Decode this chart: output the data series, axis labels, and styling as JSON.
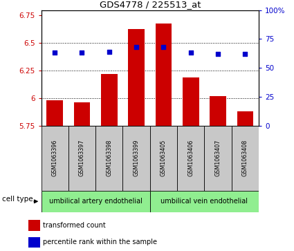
{
  "title": "GDS4778 / 225513_at",
  "samples": [
    "GSM1063396",
    "GSM1063397",
    "GSM1063398",
    "GSM1063399",
    "GSM1063405",
    "GSM1063406",
    "GSM1063407",
    "GSM1063408"
  ],
  "red_values": [
    5.98,
    5.96,
    6.22,
    6.63,
    6.68,
    6.19,
    6.02,
    5.88
  ],
  "blue_values": [
    63,
    63,
    64,
    68,
    68,
    63,
    62,
    62
  ],
  "cell_types": [
    {
      "label": "umbilical artery endothelial",
      "start": 0,
      "end": 4,
      "color": "#90EE90"
    },
    {
      "label": "umbilical vein endothelial",
      "start": 4,
      "end": 8,
      "color": "#90EE90"
    }
  ],
  "ylim_left": [
    5.75,
    6.8
  ],
  "ylim_right": [
    0,
    100
  ],
  "yticks_left": [
    5.75,
    6.0,
    6.25,
    6.5,
    6.75
  ],
  "yticks_right": [
    0,
    25,
    50,
    75,
    100
  ],
  "ytick_labels_left": [
    "5.75",
    "6",
    "6.25",
    "6.5",
    "6.75"
  ],
  "ytick_labels_right": [
    "0",
    "25",
    "50",
    "75",
    "100%"
  ],
  "bar_color": "#cc0000",
  "dot_color": "#0000cc",
  "bar_width": 0.6,
  "bar_bottom": 5.75,
  "legend_items": [
    "transformed count",
    "percentile rank within the sample"
  ],
  "grid_color": "black",
  "background_labels": "#c8c8c8",
  "cell_type_label": "cell type"
}
